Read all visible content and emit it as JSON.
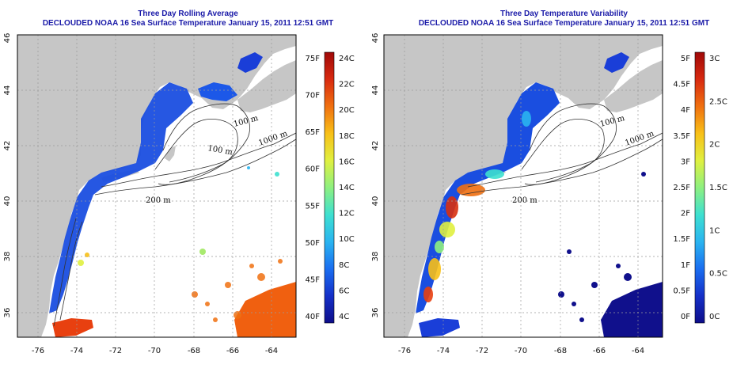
{
  "panels": [
    {
      "title": "Three Day Rolling Average",
      "subtitle": "DECLOUDED NOAA 16 Sea Surface Temperature January 15, 2011 12:51 GMT",
      "colorbar": {
        "gradient": [
          "#0d0d8a",
          "#1530c8",
          "#1a6ef0",
          "#2ab4f0",
          "#3ee0d0",
          "#8ef080",
          "#e0f040",
          "#f8c018",
          "#f07010",
          "#d82a10",
          "#a00808"
        ],
        "f_labels": [
          "75F",
          "70F",
          "65F",
          "60F",
          "55F",
          "50F",
          "45F",
          "40F"
        ],
        "c_labels": [
          "24C",
          "22C",
          "20C",
          "18C",
          "16C",
          "14C",
          "12C",
          "10C",
          "8C",
          "6C",
          "4C"
        ]
      }
    },
    {
      "title": "Three Day Temperature Variability",
      "subtitle": "DECLOUDED NOAA 16 Sea Surface Temperature January 15, 2011 12:51 GMT",
      "colorbar": {
        "gradient": [
          "#0d0d8a",
          "#1530c8",
          "#1a6ef0",
          "#2ab4f0",
          "#3ee0d0",
          "#8ef080",
          "#e0f040",
          "#f8c018",
          "#f07010",
          "#d82a10",
          "#a00808"
        ],
        "f_labels": [
          "5F",
          "4.5F",
          "4F",
          "3.5F",
          "3F",
          "2.5F",
          "2F",
          "1.5F",
          "1F",
          "0.5F",
          "0F"
        ],
        "c_labels": [
          "3C",
          "2.5C",
          "2C",
          "1.5C",
          "1C",
          "0.5C",
          "0C"
        ]
      }
    }
  ],
  "map": {
    "lon_ticks": [
      "-76",
      "-74",
      "-72",
      "-70",
      "-68",
      "-66",
      "-64"
    ],
    "lat_ticks": [
      "36",
      "38",
      "40",
      "42",
      "44",
      "46"
    ],
    "contour_labels": [
      "100 m",
      "100 m",
      "200 m",
      "1000 m",
      "200 m"
    ]
  },
  "colors": {
    "title": "#1a1aa8",
    "land": "#c6c6c6",
    "ocean": "#ffffff",
    "grid": "#9a9a9a"
  }
}
